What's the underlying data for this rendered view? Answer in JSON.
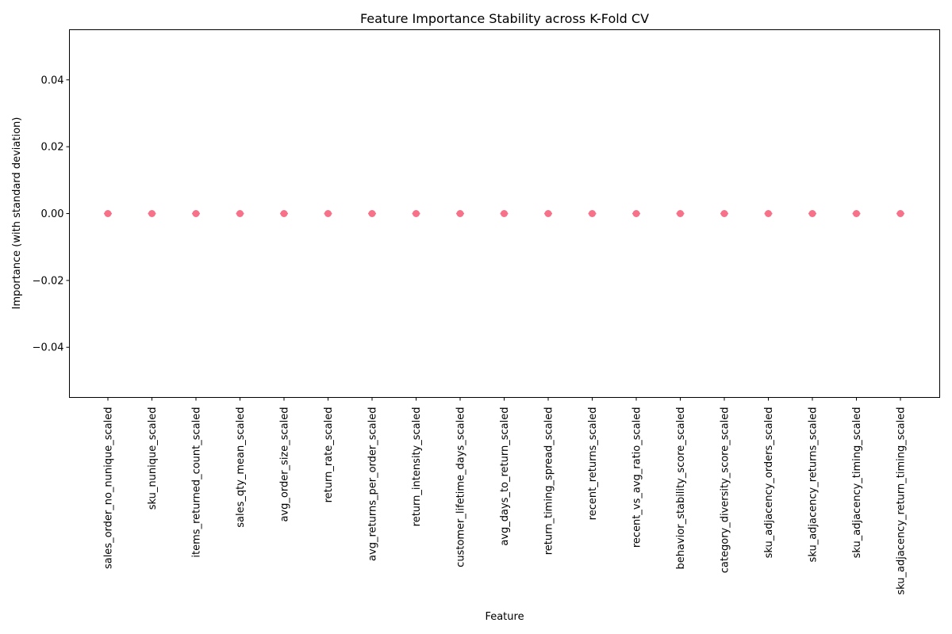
{
  "chart_data": {
    "type": "scatter",
    "title": "Feature Importance Stability across K-Fold CV",
    "xlabel": "Feature",
    "ylabel": "Importance (with standard deviation)",
    "categories": [
      "sales_order_no_nunique_scaled",
      "sku_nunique_scaled",
      "items_returned_count_scaled",
      "sales_qty_mean_scaled",
      "avg_order_size_scaled",
      "return_rate_scaled",
      "avg_returns_per_order_scaled",
      "return_intensity_scaled",
      "customer_lifetime_days_scaled",
      "avg_days_to_return_scaled",
      "return_timing_spread_scaled",
      "recent_returns_scaled",
      "recent_vs_avg_ratio_scaled",
      "behavior_stability_score_scaled",
      "category_diversity_score_scaled",
      "sku_adjacency_orders_scaled",
      "sku_adjacency_returns_scaled",
      "sku_adjacency_timing_scaled",
      "sku_adjacency_return_timing_scaled"
    ],
    "values": [
      0,
      0,
      0,
      0,
      0,
      0,
      0,
      0,
      0,
      0,
      0,
      0,
      0,
      0,
      0,
      0,
      0,
      0,
      0
    ],
    "std": [
      0,
      0,
      0,
      0,
      0,
      0,
      0,
      0,
      0,
      0,
      0,
      0,
      0,
      0,
      0,
      0,
      0,
      0,
      0
    ],
    "ylim": [
      -0.055,
      0.055
    ],
    "yticks": [
      -0.04,
      -0.02,
      0.0,
      0.02,
      0.04
    ],
    "ytick_labels": [
      "−0.04",
      "−0.02",
      "0.00",
      "0.02",
      "0.04"
    ],
    "marker_color": "#f77189",
    "grid": false
  }
}
